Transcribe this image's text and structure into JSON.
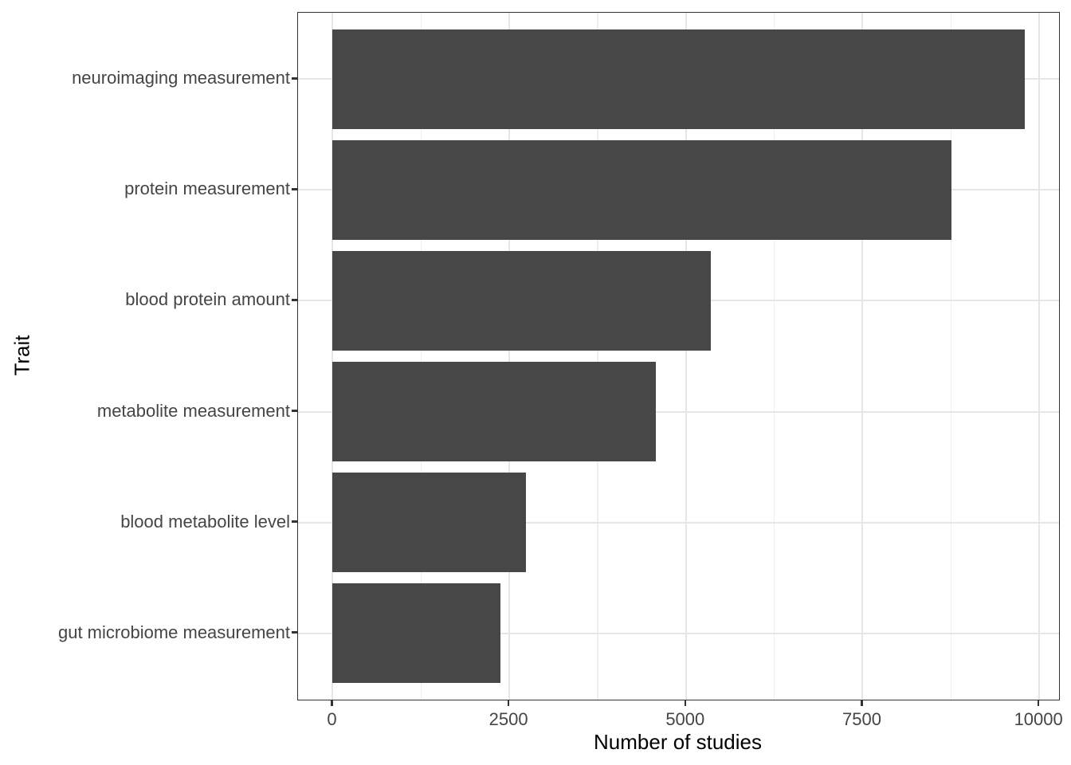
{
  "chart_data": {
    "type": "bar",
    "orientation": "horizontal",
    "title": "",
    "xlabel": "Number of studies",
    "ylabel": "Trait",
    "categories": [
      "neuroimaging measurement",
      "protein measurement",
      "blood protein amount",
      "metabolite measurement",
      "blood metabolite level",
      "gut microbiome measurement"
    ],
    "values": [
      9790,
      8760,
      5350,
      4570,
      2740,
      2370
    ],
    "x_major_ticks": [
      0,
      2500,
      5000,
      7500,
      10000
    ],
    "x_tick_labels": [
      "0",
      "2500",
      "5000",
      "7500",
      "10000"
    ],
    "x_minor_ticks": [
      1250,
      3750,
      6250,
      8750
    ],
    "xlim": [
      -490,
      10280
    ],
    "bar_width_fraction": 0.9,
    "grid": "on",
    "legend": "none",
    "colors": {
      "bar_fill": "#474747",
      "panel_border": "#333333",
      "grid_major": "#e6e6e6",
      "grid_minor": "#efefef",
      "tick_mark": "#333333",
      "tick_label": "#454545",
      "axis_title": "#000000",
      "background": "#ffffff"
    }
  }
}
